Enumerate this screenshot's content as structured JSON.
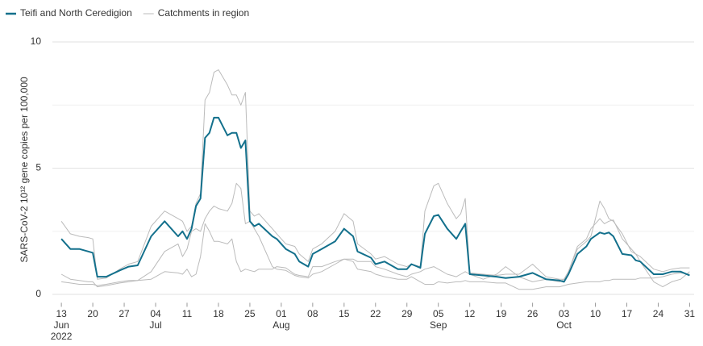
{
  "chart_data": {
    "type": "line",
    "ylabel": "SARS-CoV-2 10¹² gene copies per 100,000",
    "x": [
      "2022-06-13",
      "2022-06-15",
      "2022-06-17",
      "2022-06-19",
      "2022-06-20",
      "2022-06-21",
      "2022-06-23",
      "2022-06-26",
      "2022-06-28",
      "2022-06-30",
      "2022-07-03",
      "2022-07-06",
      "2022-07-09",
      "2022-07-10",
      "2022-07-11",
      "2022-07-12",
      "2022-07-13",
      "2022-07-14",
      "2022-07-15",
      "2022-07-16",
      "2022-07-17",
      "2022-07-18",
      "2022-07-20",
      "2022-07-21",
      "2022-07-22",
      "2022-07-23",
      "2022-07-24",
      "2022-07-25",
      "2022-07-26",
      "2022-07-27",
      "2022-07-30",
      "2022-07-31",
      "2022-08-02",
      "2022-08-04",
      "2022-08-05",
      "2022-08-07",
      "2022-08-08",
      "2022-08-10",
      "2022-08-13",
      "2022-08-15",
      "2022-08-17",
      "2022-08-18",
      "2022-08-21",
      "2022-08-22",
      "2022-08-24",
      "2022-08-27",
      "2022-08-29",
      "2022-08-30",
      "2022-09-01",
      "2022-09-02",
      "2022-09-04",
      "2022-09-05",
      "2022-09-07",
      "2022-09-09",
      "2022-09-10",
      "2022-09-11",
      "2022-09-12",
      "2022-09-15",
      "2022-09-18",
      "2022-09-20",
      "2022-09-23",
      "2022-09-26",
      "2022-09-29",
      "2022-10-02",
      "2022-10-03",
      "2022-10-04",
      "2022-10-06",
      "2022-10-08",
      "2022-10-09",
      "2022-10-11",
      "2022-10-12",
      "2022-10-13",
      "2022-10-14",
      "2022-10-16",
      "2022-10-18",
      "2022-10-19",
      "2022-10-20",
      "2022-10-23",
      "2022-10-25",
      "2022-10-27",
      "2022-10-29",
      "2022-10-31"
    ],
    "series": [
      {
        "color": "#bbbbbb",
        "name": "Catchments in region",
        "values": [
          2.9,
          2.4,
          2.3,
          2.25,
          2.2,
          0.6,
          0.65,
          1.0,
          1.2,
          1.3,
          2.7,
          3.3,
          3.0,
          2.9,
          2.5,
          2.7,
          3.6,
          4.0,
          7.7,
          8.0,
          8.8,
          8.9,
          8.3,
          7.9,
          7.9,
          7.5,
          8.0,
          3.3,
          3.1,
          3.2,
          2.6,
          2.4,
          2.0,
          1.9,
          1.6,
          1.3,
          1.8,
          2.0,
          2.5,
          3.2,
          2.9,
          2.0,
          1.6,
          1.4,
          1.5,
          1.2,
          1.1,
          1.2,
          1.1,
          3.3,
          4.3,
          4.4,
          3.6,
          3.0,
          3.2,
          3.8,
          0.85,
          0.8,
          0.75,
          0.8,
          0.8,
          1.2,
          0.7,
          0.6,
          0.6,
          0.9,
          1.9,
          2.2,
          2.6,
          3.0,
          2.8,
          2.9,
          2.95,
          2.2,
          1.8,
          1.6,
          1.5,
          1.0,
          0.9,
          1.0,
          1.05,
          1.05
        ]
      },
      {
        "color": "#bbbbbb",
        "values": [
          0.8,
          0.6,
          0.55,
          0.5,
          0.5,
          0.3,
          0.35,
          0.45,
          0.5,
          0.55,
          0.9,
          1.7,
          2.0,
          1.5,
          1.8,
          2.5,
          2.6,
          2.5,
          3.0,
          3.3,
          3.5,
          3.4,
          3.3,
          3.6,
          4.4,
          4.2,
          2.8,
          2.9,
          2.6,
          2.3,
          1.1,
          1.0,
          0.95,
          0.75,
          0.7,
          0.65,
          0.8,
          0.9,
          1.2,
          1.4,
          1.3,
          1.0,
          0.9,
          0.8,
          0.7,
          0.6,
          0.6,
          0.7,
          0.5,
          0.4,
          0.4,
          0.5,
          0.45,
          0.5,
          0.5,
          0.55,
          0.5,
          0.5,
          0.45,
          0.45,
          0.2,
          0.2,
          0.3,
          0.3,
          0.35,
          0.4,
          0.45,
          0.5,
          0.5,
          0.5,
          0.55,
          0.55,
          0.6,
          0.6,
          0.6,
          0.6,
          0.65,
          0.65,
          0.7,
          0.8,
          0.85,
          0.8
        ]
      },
      {
        "color": "#bbbbbb",
        "values": [
          0.5,
          0.45,
          0.4,
          0.4,
          0.4,
          0.35,
          0.4,
          0.5,
          0.55,
          0.55,
          0.6,
          0.9,
          0.85,
          0.8,
          1.0,
          0.7,
          0.8,
          1.5,
          2.8,
          2.5,
          2.1,
          2.1,
          2.0,
          2.2,
          1.3,
          0.9,
          1.0,
          0.95,
          0.9,
          1.0,
          1.0,
          1.1,
          1.05,
          0.8,
          0.75,
          0.7,
          1.1,
          1.1,
          1.3,
          1.4,
          1.4,
          1.3,
          1.3,
          1.1,
          1.0,
          0.8,
          0.7,
          0.8,
          0.9,
          1.0,
          1.1,
          1.0,
          0.8,
          0.7,
          0.8,
          0.9,
          0.8,
          0.6,
          0.8,
          1.1,
          0.7,
          0.5,
          0.6,
          0.5,
          0.6,
          0.9,
          1.8,
          2.1,
          2.3,
          3.7,
          3.4,
          3.0,
          2.9,
          2.4,
          1.7,
          1.6,
          1.3,
          0.5,
          0.3,
          0.5,
          0.6,
          0.9
        ]
      },
      {
        "color": "#13708c",
        "name": "Teifi and North Ceredigion",
        "values": [
          2.2,
          1.8,
          1.8,
          1.7,
          1.65,
          0.7,
          0.7,
          0.95,
          1.1,
          1.15,
          2.3,
          2.9,
          2.3,
          2.5,
          2.2,
          2.6,
          3.5,
          3.8,
          6.2,
          6.4,
          7.0,
          7.0,
          6.3,
          6.4,
          6.4,
          5.8,
          6.1,
          2.9,
          2.7,
          2.8,
          2.3,
          2.2,
          1.8,
          1.6,
          1.3,
          1.1,
          1.6,
          1.8,
          2.1,
          2.6,
          2.3,
          1.7,
          1.45,
          1.2,
          1.3,
          1.0,
          1.0,
          1.2,
          1.05,
          2.4,
          3.1,
          3.15,
          2.6,
          2.2,
          2.5,
          2.8,
          0.8,
          0.75,
          0.7,
          0.65,
          0.7,
          0.85,
          0.6,
          0.55,
          0.5,
          0.8,
          1.6,
          1.9,
          2.2,
          2.45,
          2.4,
          2.45,
          2.3,
          1.6,
          1.55,
          1.35,
          1.3,
          0.8,
          0.8,
          0.9,
          0.9,
          0.75
        ]
      }
    ],
    "legend_order": [
      3,
      0
    ],
    "xlim": [
      "2022-06-11",
      "2022-11-01"
    ],
    "xticks": [
      {
        "value": "2022-06-13",
        "label": "13\nJun\n2022"
      },
      {
        "value": "2022-06-20",
        "label": "20"
      },
      {
        "value": "2022-06-27",
        "label": "27"
      },
      {
        "value": "2022-07-04",
        "label": "04\nJul"
      },
      {
        "value": "2022-07-11",
        "label": "11"
      },
      {
        "value": "2022-07-18",
        "label": "18"
      },
      {
        "value": "2022-07-25",
        "label": "25"
      },
      {
        "value": "2022-08-01",
        "label": "01\nAug"
      },
      {
        "value": "2022-08-08",
        "label": "08"
      },
      {
        "value": "2022-08-15",
        "label": "15"
      },
      {
        "value": "2022-08-22",
        "label": "22"
      },
      {
        "value": "2022-08-29",
        "label": "29"
      },
      {
        "value": "2022-09-05",
        "label": "05\nSep"
      },
      {
        "value": "2022-09-12",
        "label": "12"
      },
      {
        "value": "2022-09-19",
        "label": "19"
      },
      {
        "value": "2022-09-26",
        "label": "26"
      },
      {
        "value": "2022-10-03",
        "label": "03\nOct"
      },
      {
        "value": "2022-10-10",
        "label": "10"
      },
      {
        "value": "2022-10-17",
        "label": "17"
      },
      {
        "value": "2022-10-24",
        "label": "24"
      },
      {
        "value": "2022-10-31",
        "label": "31"
      }
    ],
    "ylim": [
      -0.3,
      10.5
    ],
    "yticks": [
      0,
      5,
      10
    ],
    "minor_yticks": [
      2.5,
      7.5
    ],
    "grid": true
  }
}
